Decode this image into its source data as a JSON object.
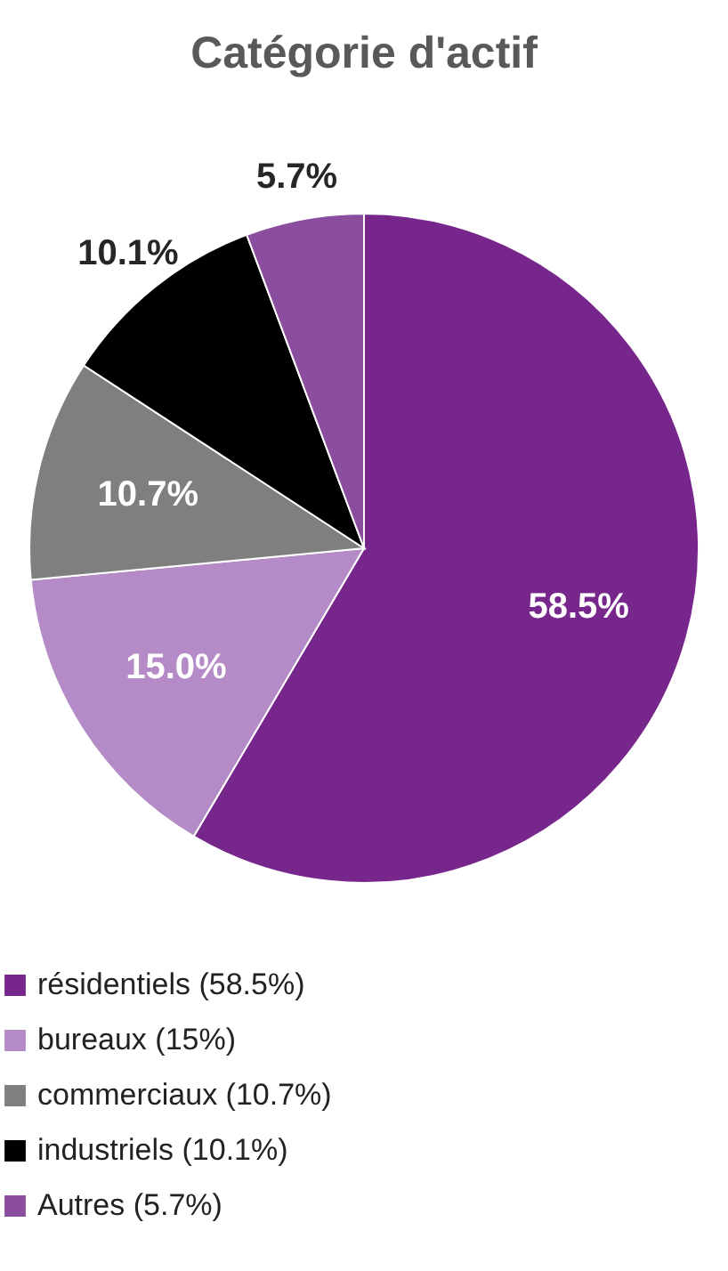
{
  "chart_data": {
    "type": "pie",
    "title": "Catégorie d'actif",
    "categories": [
      "résidentiels (58.5%)",
      "bureaux (15%)",
      "commerciaux (10.7%)",
      "industriels (10.1%)",
      "Autres (5.7%)"
    ],
    "values": [
      58.5,
      15.0,
      10.7,
      10.1,
      5.7
    ],
    "value_labels": [
      "58.5%",
      "15.0%",
      "10.7%",
      "10.1%",
      "5.7%"
    ],
    "colors": [
      "#77278c",
      "#b48bc6",
      "#7f7f7f",
      "#000000",
      "#8b4d9e"
    ],
    "legend": "bottom"
  }
}
